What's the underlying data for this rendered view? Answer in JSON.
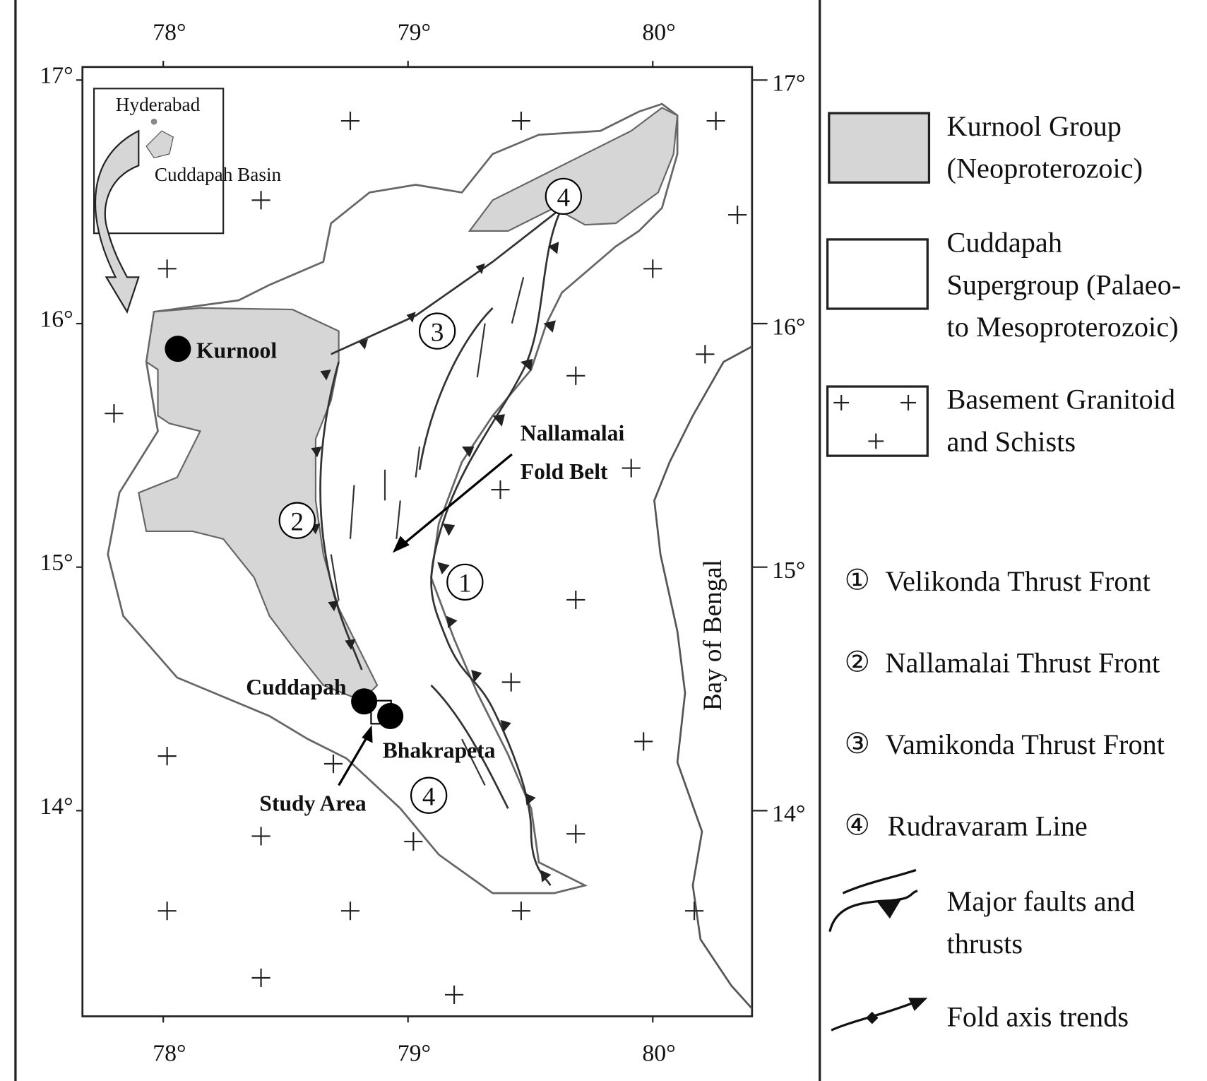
{
  "axes": {
    "top": [
      {
        "value": 78,
        "label": "78°"
      },
      {
        "value": 79,
        "label": "79°"
      },
      {
        "value": 80,
        "label": "80°"
      }
    ],
    "bottom": [
      {
        "value": 78,
        "label": "78°"
      },
      {
        "value": 79,
        "label": "79°"
      },
      {
        "value": 80,
        "label": "80°"
      }
    ],
    "left": [
      {
        "value": 17,
        "label": "17°"
      },
      {
        "value": 16,
        "label": "16°"
      },
      {
        "value": 15,
        "label": "15°"
      },
      {
        "value": 14,
        "label": "14°"
      }
    ],
    "right": [
      {
        "value": 17,
        "label": "17°"
      },
      {
        "value": 16,
        "label": "16°"
      },
      {
        "value": 15,
        "label": "15°"
      },
      {
        "value": 14,
        "label": "14°"
      }
    ]
  },
  "inset": {
    "labels": [
      "Hyderabad",
      "Cuddapah Basin"
    ]
  },
  "places": [
    "Kurnool",
    "Cuddapah",
    "Bhakrapeta"
  ],
  "annotations": {
    "fold_belt": [
      "Nallamalai",
      "Fold Belt"
    ],
    "study_area": "Study Area",
    "sea": "Bay of Bengal"
  },
  "markers": [
    "3",
    "4",
    "2",
    "1",
    "4"
  ],
  "legend": {
    "units": [
      {
        "lines": [
          "Kurnool Group",
          "(Neoproterozoic)"
        ]
      },
      {
        "lines": [
          "Cuddapah",
          "Supergroup (Palaeo-",
          "to Mesoproterozoic)"
        ]
      },
      {
        "lines": [
          "Basement Granitoid",
          "and Schists"
        ]
      }
    ],
    "structures": [
      {
        "symbol": "①",
        "label": "Velikonda Thrust Front"
      },
      {
        "symbol": "②",
        "label": "Nallamalai Thrust Front"
      },
      {
        "symbol": "③",
        "label": "Vamikonda Thrust Front"
      },
      {
        "symbol": "④",
        "label": "Rudravaram Line"
      }
    ],
    "symbols": [
      {
        "lines": [
          "Major faults and",
          "thrusts"
        ]
      },
      {
        "lines": [
          "Fold axis trends"
        ]
      }
    ]
  }
}
